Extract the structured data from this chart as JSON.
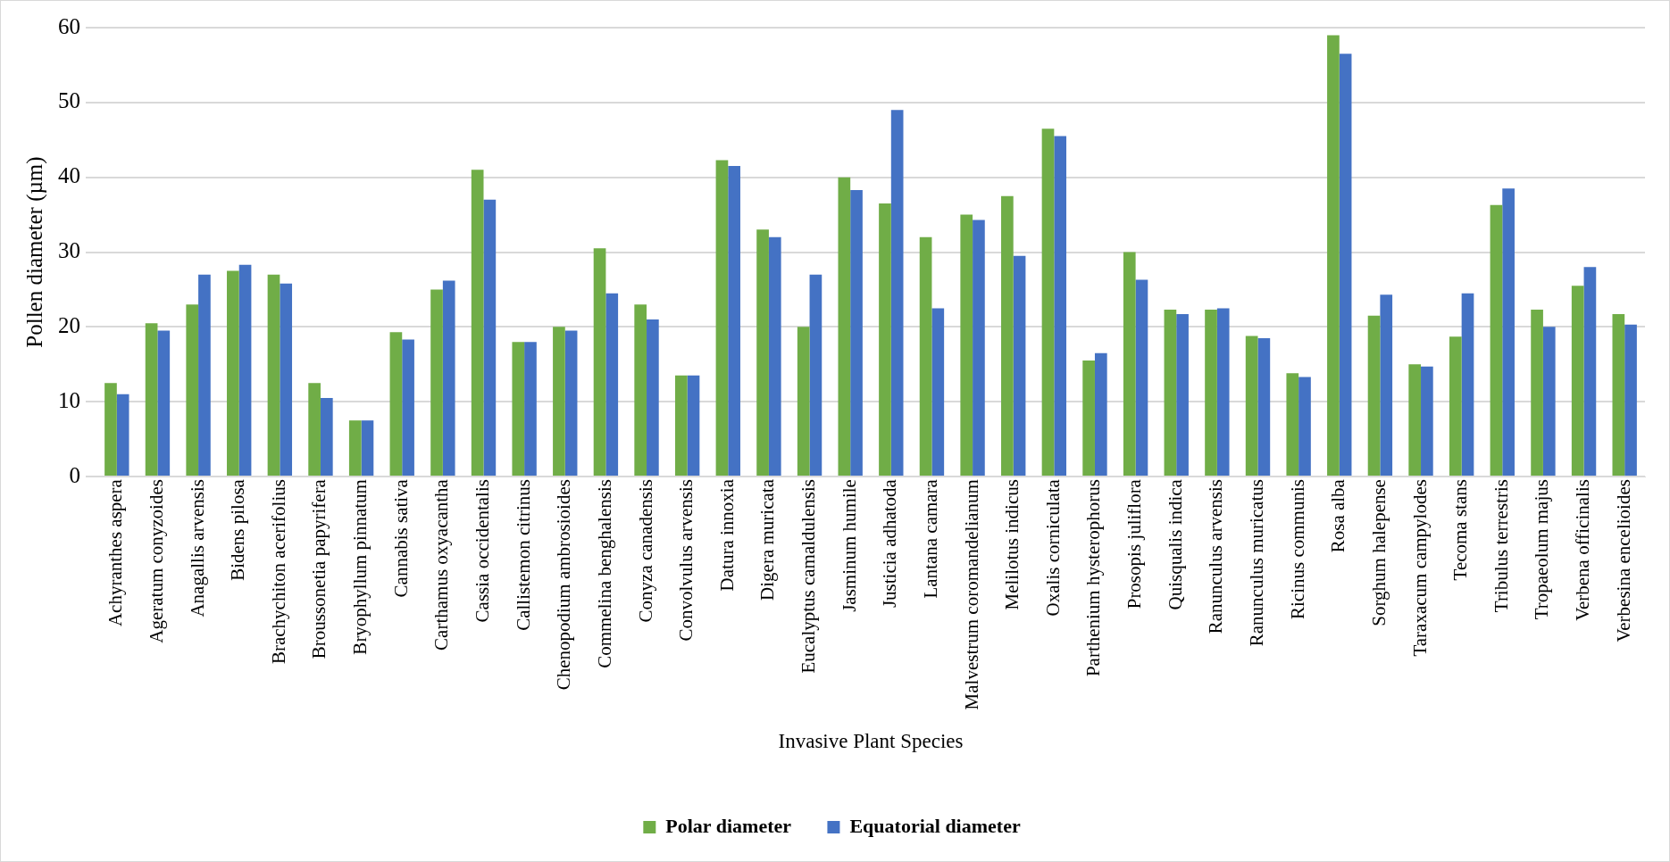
{
  "chart_data": {
    "type": "bar",
    "xlabel": "Invasive Plant Species",
    "ylabel": "Pollen diameter (µm)",
    "categories": [
      "Achyranthes aspera",
      "Ageratum conyzoides",
      "Anagallis arvensis",
      "Bidens pilosa",
      "Brachychiton acerifolius",
      "Broussonetia papyrifera",
      "Bryophyllum pinnatum",
      "Cannabis sativa",
      "Carthamus oxyacantha",
      "Cassia occidentalis",
      "Callistemon citrinus",
      "Chenopodium ambrosioides",
      "Commelina benghalensis",
      "Conyza canadensis",
      "Convolvulus arvensis",
      "Datura innoxia",
      "Digera muricata",
      "Eucalyptus camaldulensis",
      "Jasminum humile",
      "Justicia adhatoda",
      "Lantana camara",
      "Malvestrum coromandelianum",
      "Melilotus indicus",
      "Oxalis corniculata",
      "Parthenium hysterophorus",
      "Prosopis juliflora",
      "Quisqualis indica",
      "Ranunculus arvensis",
      "Ranunculus muricatus",
      "Ricinus communis",
      "Rosa alba",
      "Sorghum halepense",
      "Taraxacum campylodes",
      "Tecoma stans",
      "Tribulus terrestris",
      "Tropaeolum majus",
      "Verbena officinalis",
      "Verbesina encelioides"
    ],
    "series": [
      {
        "name": "Polar diameter",
        "color": "#70ad47",
        "values": [
          12.5,
          20.5,
          23,
          27.5,
          27,
          12.5,
          7.5,
          19.3,
          25,
          41,
          18,
          20,
          30.5,
          23,
          13.5,
          42.3,
          33,
          20,
          40,
          36.5,
          32,
          35,
          37.5,
          46.5,
          15.5,
          30,
          22.3,
          22.3,
          18.8,
          13.8,
          59,
          21.5,
          15,
          18.7,
          36.3,
          22.3,
          25.5,
          21.7
        ]
      },
      {
        "name": "Equatorial diameter",
        "color": "#4472c4",
        "values": [
          11,
          19.5,
          27,
          28.3,
          25.8,
          10.5,
          7.5,
          18.3,
          26.2,
          37,
          18,
          19.5,
          24.5,
          21,
          13.5,
          41.5,
          32,
          27,
          38.3,
          49,
          22.5,
          34.3,
          29.5,
          45.5,
          16.5,
          26.3,
          21.7,
          22.5,
          18.5,
          13.3,
          56.5,
          24.3,
          14.7,
          24.5,
          38.5,
          20,
          28,
          20.3
        ]
      }
    ],
    "ylim": [
      0,
      60
    ],
    "yticks": [
      0,
      10,
      20,
      30,
      40,
      50,
      60
    ],
    "grid": "y",
    "legend": "bottom"
  }
}
